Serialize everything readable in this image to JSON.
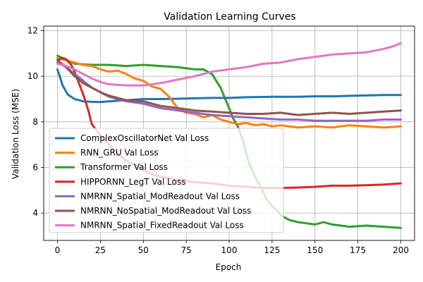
{
  "chart_data": {
    "type": "line",
    "title": "Validation Learning Curves",
    "xlabel": "Epoch",
    "ylabel": "Validation Loss (MSE)",
    "xlim": [
      -8,
      208
    ],
    "ylim": [
      2.8,
      12.2
    ],
    "xticks": [
      0,
      25,
      50,
      75,
      100,
      125,
      150,
      175,
      200
    ],
    "yticks": [
      4,
      6,
      8,
      10,
      12
    ],
    "grid": true,
    "legend_position": "lower left",
    "series": [
      {
        "name": "ComplexOscillatorNet Val Loss",
        "color": "#1f77b4",
        "x": [
          0,
          3,
          6,
          10,
          15,
          20,
          25,
          30,
          40,
          50,
          60,
          75,
          90,
          100,
          110,
          125,
          140,
          150,
          160,
          175,
          190,
          200
        ],
        "y": [
          10.3,
          9.6,
          9.2,
          9.0,
          8.9,
          8.88,
          8.87,
          8.9,
          8.95,
          9.0,
          9.0,
          9.02,
          9.05,
          9.05,
          9.08,
          9.1,
          9.1,
          9.12,
          9.12,
          9.15,
          9.18,
          9.18
        ]
      },
      {
        "name": "RNN_GRU Val Loss",
        "color": "#ff7f0e",
        "x": [
          0,
          5,
          10,
          15,
          20,
          25,
          30,
          35,
          40,
          45,
          50,
          55,
          60,
          65,
          70,
          75,
          80,
          85,
          90,
          95,
          100,
          105,
          110,
          115,
          120,
          125,
          130,
          140,
          150,
          160,
          170,
          180,
          190,
          200
        ],
        "y": [
          10.8,
          10.7,
          10.6,
          10.5,
          10.45,
          10.3,
          10.2,
          10.25,
          10.1,
          9.9,
          9.8,
          9.55,
          9.45,
          9.1,
          8.6,
          8.4,
          8.35,
          8.2,
          8.3,
          8.1,
          8.0,
          7.9,
          7.95,
          7.85,
          7.9,
          7.8,
          7.85,
          7.75,
          7.8,
          7.75,
          7.85,
          7.8,
          7.75,
          7.8
        ]
      },
      {
        "name": "Transformer Val Loss",
        "color": "#2ca02c",
        "x": [
          0,
          10,
          20,
          30,
          40,
          50,
          60,
          70,
          80,
          85,
          90,
          95,
          100,
          102,
          105,
          108,
          110,
          112,
          115,
          118,
          120,
          122,
          125,
          128,
          130,
          135,
          140,
          145,
          150,
          155,
          160,
          170,
          180,
          190,
          200
        ],
        "y": [
          10.9,
          10.55,
          10.5,
          10.5,
          10.45,
          10.5,
          10.45,
          10.4,
          10.3,
          10.3,
          10.1,
          9.5,
          8.6,
          8.2,
          7.8,
          7.2,
          6.6,
          6.1,
          5.6,
          5.2,
          4.9,
          4.6,
          4.3,
          4.1,
          3.9,
          3.7,
          3.6,
          3.55,
          3.5,
          3.6,
          3.5,
          3.4,
          3.45,
          3.4,
          3.35
        ]
      },
      {
        "name": "HIPPORNN_LegT Val Loss",
        "color": "#d62728",
        "x": [
          0,
          3,
          5,
          8,
          10,
          12,
          15,
          18,
          20,
          25,
          30,
          35,
          40,
          45,
          50,
          55,
          60,
          70,
          80,
          90,
          100,
          110,
          120,
          130,
          140,
          150,
          160,
          170,
          180,
          190,
          200
        ],
        "y": [
          10.7,
          10.8,
          10.75,
          10.5,
          10.2,
          9.8,
          9.2,
          8.5,
          7.9,
          7.4,
          7.0,
          6.6,
          6.3,
          6.1,
          5.9,
          5.7,
          5.6,
          5.45,
          5.35,
          5.3,
          5.2,
          5.15,
          5.1,
          5.1,
          5.12,
          5.15,
          5.2,
          5.2,
          5.22,
          5.25,
          5.3
        ]
      },
      {
        "name": "NMRNN_Spatial_ModReadout Val Loss",
        "color": "#9467bd",
        "x": [
          0,
          5,
          10,
          15,
          20,
          25,
          30,
          35,
          40,
          50,
          60,
          70,
          80,
          90,
          100,
          110,
          120,
          130,
          140,
          150,
          160,
          170,
          180,
          190,
          200
        ],
        "y": [
          10.6,
          10.4,
          10.1,
          9.8,
          9.5,
          9.3,
          9.1,
          9.0,
          8.9,
          8.8,
          8.6,
          8.5,
          8.4,
          8.3,
          8.25,
          8.2,
          8.15,
          8.1,
          8.1,
          8.05,
          8.05,
          8.05,
          8.05,
          8.1,
          8.1
        ]
      },
      {
        "name": "NMRNN_NoSpatial_ModReadout Val Loss",
        "color": "#8c564b",
        "x": [
          0,
          5,
          10,
          15,
          20,
          25,
          30,
          35,
          40,
          50,
          60,
          70,
          80,
          90,
          100,
          110,
          120,
          130,
          140,
          150,
          160,
          170,
          180,
          190,
          200
        ],
        "y": [
          10.7,
          10.4,
          10.0,
          9.7,
          9.5,
          9.3,
          9.15,
          9.05,
          8.95,
          8.9,
          8.7,
          8.6,
          8.5,
          8.45,
          8.4,
          8.35,
          8.35,
          8.4,
          8.3,
          8.35,
          8.4,
          8.35,
          8.4,
          8.45,
          8.5
        ]
      },
      {
        "name": "NMRNN_Spatial_FixedReadout Val Loss",
        "color": "#e377c2",
        "x": [
          0,
          5,
          10,
          15,
          20,
          25,
          30,
          40,
          50,
          60,
          70,
          80,
          90,
          100,
          110,
          120,
          130,
          140,
          150,
          160,
          170,
          180,
          190,
          195,
          200
        ],
        "y": [
          10.55,
          10.45,
          10.3,
          10.1,
          9.9,
          9.75,
          9.65,
          9.6,
          9.6,
          9.7,
          9.85,
          10.0,
          10.2,
          10.3,
          10.4,
          10.55,
          10.6,
          10.75,
          10.85,
          10.95,
          11.0,
          11.05,
          11.2,
          11.3,
          11.45
        ]
      }
    ]
  }
}
